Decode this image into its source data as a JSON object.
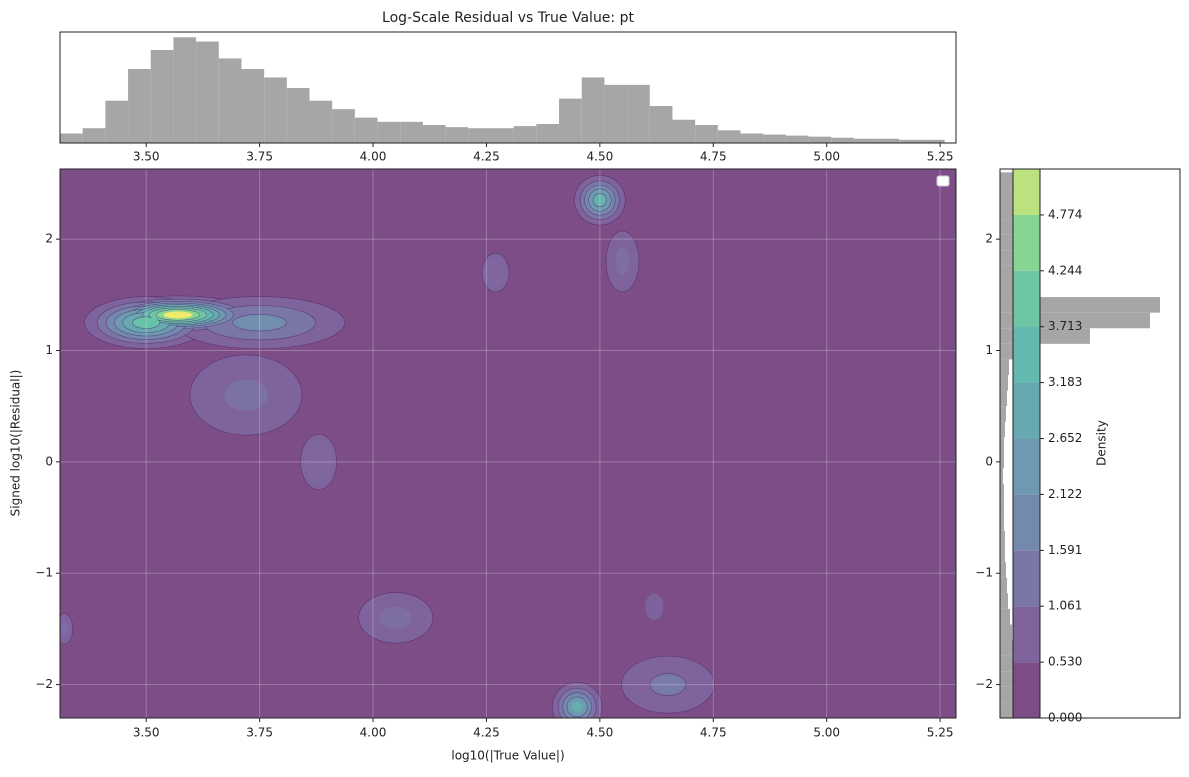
{
  "chart_data": {
    "type": "density_contour",
    "title": "Log-Scale Residual vs True Value: pt",
    "xlabel": "log10(|True Value|)",
    "ylabel": "Signed log10(|Residual|)",
    "colorbar_label": "Density",
    "xlim": [
      3.31,
      5.285
    ],
    "ylim": [
      -2.3,
      2.63
    ],
    "xticks": [
      {
        "value": 3.5,
        "label": "3.50"
      },
      {
        "value": 3.75,
        "label": "3.75"
      },
      {
        "value": 4,
        "label": "4.00"
      },
      {
        "value": 4.25,
        "label": "4.25"
      },
      {
        "value": 4.5,
        "label": "4.50"
      },
      {
        "value": 4.75,
        "label": "4.75"
      },
      {
        "value": 5,
        "label": "5.00"
      },
      {
        "value": 5.25,
        "label": "5.25"
      }
    ],
    "yticks": [
      {
        "value": -2,
        "label": "−2"
      },
      {
        "value": -1,
        "label": "−1"
      },
      {
        "value": 0,
        "label": "0"
      },
      {
        "value": 1,
        "label": "1"
      },
      {
        "value": 2,
        "label": "2"
      }
    ],
    "grid": true,
    "colormap": "viridis",
    "clim": [
      0,
      5.21
    ],
    "cticks": [
      {
        "value": 0,
        "label": "0.000"
      },
      {
        "value": 0.53,
        "label": "0.530"
      },
      1.061,
      1.591,
      2.122,
      2.652,
      3.183,
      3.713,
      4.244,
      4.774
    ],
    "clusters": [
      {
        "x": 3.57,
        "y": 1.32,
        "sx": 0.08,
        "sy": 0.08,
        "peak": 5.1
      },
      {
        "x": 3.5,
        "y": 1.25,
        "sx": 0.07,
        "sy": 0.12,
        "peak": 3.5
      },
      {
        "x": 3.75,
        "y": 1.25,
        "sx": 0.12,
        "sy": 0.15,
        "peak": 1.8
      },
      {
        "x": 3.72,
        "y": 0.6,
        "sx": 0.12,
        "sy": 0.35,
        "peak": 0.9
      },
      {
        "x": 3.88,
        "y": 0.0,
        "sx": 0.08,
        "sy": 0.5,
        "peak": 0.6
      },
      {
        "x": 4.05,
        "y": -1.4,
        "sx": 0.09,
        "sy": 0.25,
        "peak": 0.8
      },
      {
        "x": 4.5,
        "y": 2.35,
        "sx": 0.03,
        "sy": 0.12,
        "peak": 3.0
      },
      {
        "x": 4.55,
        "y": 1.8,
        "sx": 0.04,
        "sy": 0.3,
        "peak": 0.8
      },
      {
        "x": 4.27,
        "y": 1.7,
        "sx": 0.06,
        "sy": 0.35,
        "peak": 0.6
      },
      {
        "x": 4.45,
        "y": -2.2,
        "sx": 0.03,
        "sy": 0.12,
        "peak": 2.8
      },
      {
        "x": 4.65,
        "y": -2.0,
        "sx": 0.08,
        "sy": 0.2,
        "peak": 1.2
      },
      {
        "x": 4.62,
        "y": -1.3,
        "sx": 0.05,
        "sy": 0.3,
        "peak": 0.5
      },
      {
        "x": 3.32,
        "y": -1.5,
        "sx": 0.02,
        "sy": 0.15,
        "peak": 0.8
      }
    ],
    "top_hist": {
      "color": "#a6a6a6",
      "ylim": [
        0,
        105
      ],
      "bins": [
        3.31,
        3.36,
        3.41,
        3.46,
        3.51,
        3.56,
        3.61,
        3.66,
        3.71,
        3.76,
        3.81,
        3.86,
        3.91,
        3.96,
        4.01,
        4.06,
        4.11,
        4.16,
        4.21,
        4.26,
        4.31,
        4.36,
        4.41,
        4.46,
        4.51,
        4.56,
        4.61,
        4.66,
        4.71,
        4.76,
        4.81,
        4.86,
        4.91,
        4.96,
        5.01,
        5.06,
        5.11,
        5.16,
        5.21,
        5.26
      ],
      "counts": [
        9,
        14,
        40,
        70,
        88,
        100,
        96,
        80,
        70,
        62,
        52,
        40,
        32,
        24,
        20,
        20,
        17,
        15,
        14,
        14,
        16,
        18,
        42,
        62,
        55,
        55,
        35,
        22,
        17,
        12,
        9,
        8,
        7,
        6,
        5,
        4,
        4,
        3,
        3
      ]
    },
    "right_hist": {
      "color": "#a6a6a6",
      "xlim": [
        0,
        180
      ],
      "bins": [
        -2.3,
        -2.16,
        -2.02,
        -1.88,
        -1.74,
        -1.6,
        -1.46,
        -1.32,
        -1.18,
        -1.04,
        -0.9,
        -0.76,
        -0.62,
        -0.48,
        -0.34,
        -0.2,
        -0.06,
        0.08,
        0.22,
        0.36,
        0.5,
        0.64,
        0.78,
        0.92,
        1.06,
        1.2,
        1.34,
        1.48,
        1.62,
        1.76,
        1.9,
        2.04,
        2.18,
        2.32,
        2.46,
        2.6
      ],
      "counts": [
        14,
        14,
        14,
        14,
        13,
        12,
        10,
        8,
        7,
        6,
        5,
        5,
        4,
        4,
        4,
        3,
        4,
        4,
        5,
        6,
        7,
        8,
        9,
        40,
        90,
        150,
        160,
        30,
        14,
        13,
        13,
        13,
        14,
        14,
        14
      ]
    }
  }
}
